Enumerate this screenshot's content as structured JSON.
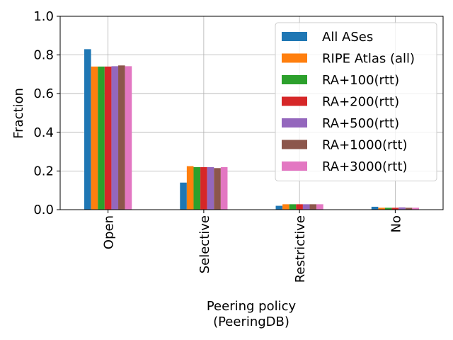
{
  "chart_data": {
    "type": "bar",
    "categories": [
      "Open",
      "Selective",
      "Restrictive",
      "No"
    ],
    "series": [
      {
        "name": "All ASes",
        "color": "#1f77b4",
        "values": [
          0.83,
          0.14,
          0.02,
          0.015
        ]
      },
      {
        "name": "RIPE Atlas (all)",
        "color": "#ff7f0e",
        "values": [
          0.74,
          0.225,
          0.028,
          0.01
        ]
      },
      {
        "name": "RA+100(rtt)",
        "color": "#2ca02c",
        "values": [
          0.74,
          0.22,
          0.028,
          0.01
        ]
      },
      {
        "name": "RA+200(rtt)",
        "color": "#d62728",
        "values": [
          0.74,
          0.22,
          0.028,
          0.01
        ]
      },
      {
        "name": "RA+500(rtt)",
        "color": "#9467bd",
        "values": [
          0.742,
          0.22,
          0.028,
          0.012
        ]
      },
      {
        "name": "RA+1000(rtt)",
        "color": "#8c564b",
        "values": [
          0.746,
          0.215,
          0.028,
          0.01
        ]
      },
      {
        "name": "RA+3000(rtt)",
        "color": "#e377c2",
        "values": [
          0.742,
          0.22,
          0.028,
          0.01
        ]
      }
    ],
    "xlabel": "Peering policy\n(PeeringDB)",
    "ylabel": "Fraction",
    "ylim": [
      0,
      1.0
    ],
    "yticks": [
      "0.0",
      "0.2",
      "0.4",
      "0.6",
      "0.8",
      "1.0"
    ],
    "grid": true,
    "legend_position": "top-right"
  }
}
